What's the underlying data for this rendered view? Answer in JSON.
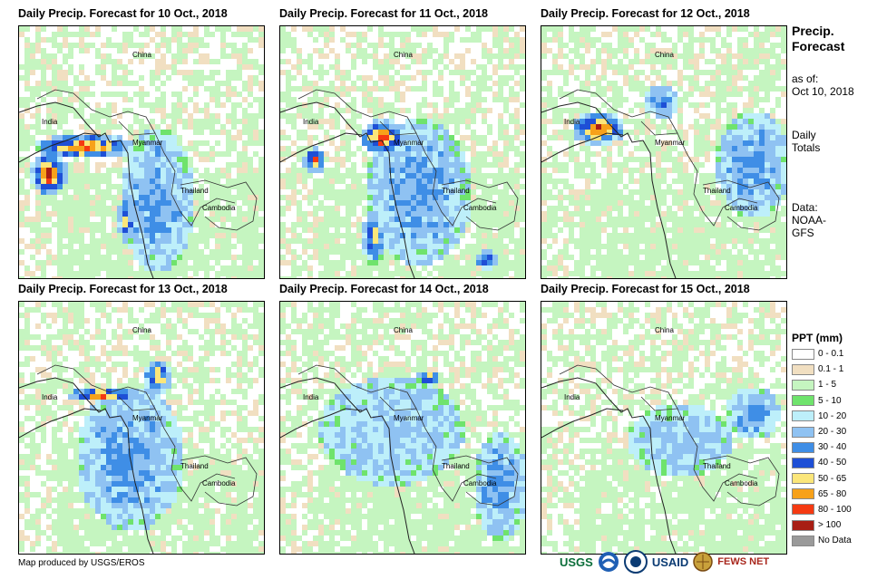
{
  "panels": [
    {
      "title": "Daily Precip. Forecast for 10 Oct., 2018",
      "labels": {
        "china": "China",
        "india": "India",
        "myanmar": "Myanmar",
        "thailand": "Thailand",
        "cambodia": "Cambodia"
      }
    },
    {
      "title": "Daily Precip. Forecast for 11 Oct., 2018",
      "labels": {
        "china": "China",
        "india": "India",
        "myanmar": "Myanmar",
        "thailand": "Thailand",
        "cambodia": "Cambodia"
      }
    },
    {
      "title": "Daily Precip. Forecast for 12 Oct., 2018",
      "labels": {
        "china": "China",
        "india": "India",
        "myanmar": "Myanmar",
        "thailand": "Thailand",
        "cambodia": "Cambodia"
      }
    },
    {
      "title": "Daily Precip. Forecast for 13 Oct., 2018",
      "labels": {
        "china": "China",
        "india": "India",
        "myanmar": "Myanmar",
        "thailand": "Thailand",
        "cambodia": "Cambodia"
      }
    },
    {
      "title": "Daily Precip. Forecast for 14 Oct., 2018",
      "labels": {
        "china": "China",
        "india": "India",
        "myanmar": "Myanmar",
        "thailand": "Thailand",
        "cambodia": "Cambodia"
      }
    },
    {
      "title": "Daily Precip. Forecast for 15 Oct., 2018",
      "labels": {
        "china": "China",
        "india": "India",
        "myanmar": "Myanmar",
        "thailand": "Thailand",
        "cambodia": "Cambodia"
      }
    }
  ],
  "side": {
    "title_line1": "Precip.",
    "title_line2": "Forecast",
    "asof_label": "as of:",
    "asof_date": "Oct 10, 2018",
    "daily_line1": "Daily",
    "daily_line2": "Totals",
    "data_label": "Data:",
    "data_source_line1": "NOAA-",
    "data_source_line2": "GFS"
  },
  "legend": {
    "title": "PPT (mm)",
    "items": [
      {
        "label": "0 - 0.1",
        "color": "#ffffff"
      },
      {
        "label": "0.1 - 1",
        "color": "#f1dfc1"
      },
      {
        "label": "1 - 5",
        "color": "#c5f5c0"
      },
      {
        "label": "5 - 10",
        "color": "#6fe36c"
      },
      {
        "label": "10 - 20",
        "color": "#bdeffa"
      },
      {
        "label": "20 - 30",
        "color": "#8fc2f2"
      },
      {
        "label": "30 - 40",
        "color": "#3f8ee6"
      },
      {
        "label": "40 - 50",
        "color": "#1e4fd6"
      },
      {
        "label": "50 - 65",
        "color": "#fbe67a"
      },
      {
        "label": "65 - 80",
        "color": "#f7a11a"
      },
      {
        "label": "80 - 100",
        "color": "#f53a12"
      },
      {
        "label": "> 100",
        "color": "#a81e14"
      },
      {
        "label": "No Data",
        "color": "#9a9a9a"
      }
    ]
  },
  "credit": "Map produced by USGS/EROS",
  "logos": {
    "usgs": "USGS",
    "usaid": "USAID",
    "fewsnet": "FEWS NET"
  }
}
